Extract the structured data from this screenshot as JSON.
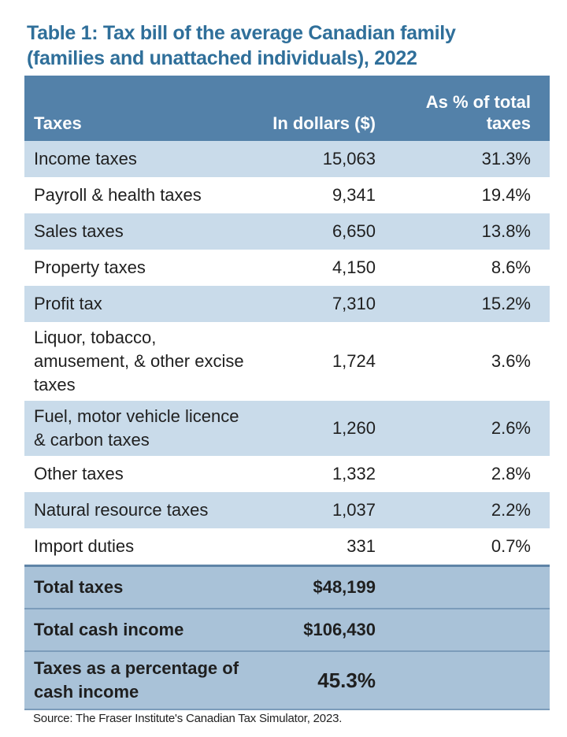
{
  "title": {
    "line1": "Table 1: Tax bill of the average Canadian family",
    "line2": "(families and unattached individuals), 2022"
  },
  "table": {
    "headers": {
      "taxes": "Taxes",
      "dollars": "In dollars ($)",
      "percent": "As % of total taxes"
    },
    "rows": [
      {
        "label": "Income taxes",
        "dollars": "15,063",
        "percent": "31.3%"
      },
      {
        "label": "Payroll & health taxes",
        "dollars": "9,341",
        "percent": "19.4%"
      },
      {
        "label": "Sales taxes",
        "dollars": "6,650",
        "percent": "13.8%"
      },
      {
        "label": "Property taxes",
        "dollars": "4,150",
        "percent": "8.6%"
      },
      {
        "label": "Profit tax",
        "dollars": "7,310",
        "percent": "15.2%"
      },
      {
        "label": "Liquor, tobacco, amusement, & other excise taxes",
        "dollars": "1,724",
        "percent": "3.6%"
      },
      {
        "label": "Fuel, motor vehicle licence & carbon taxes",
        "dollars": "1,260",
        "percent": "2.6%"
      },
      {
        "label": "Other taxes",
        "dollars": "1,332",
        "percent": "2.8%"
      },
      {
        "label": "Natural resource taxes",
        "dollars": "1,037",
        "percent": "2.2%"
      },
      {
        "label": "Import duties",
        "dollars": "331",
        "percent": "0.7%"
      }
    ],
    "totals": [
      {
        "label": "Total taxes",
        "value": "$48,199"
      },
      {
        "label": "Total cash income",
        "value": "$106,430"
      },
      {
        "label": "Taxes as a percentage of cash income",
        "value": "45.3%"
      }
    ]
  },
  "colors": {
    "title": "#2f6f9a",
    "header_bg": "#5381a9",
    "row_alt": "#c9dbea",
    "totals_bg": "#a9c2d8"
  },
  "source": "Source: The Fraser Institute's Canadian Tax Simulator, 2023."
}
